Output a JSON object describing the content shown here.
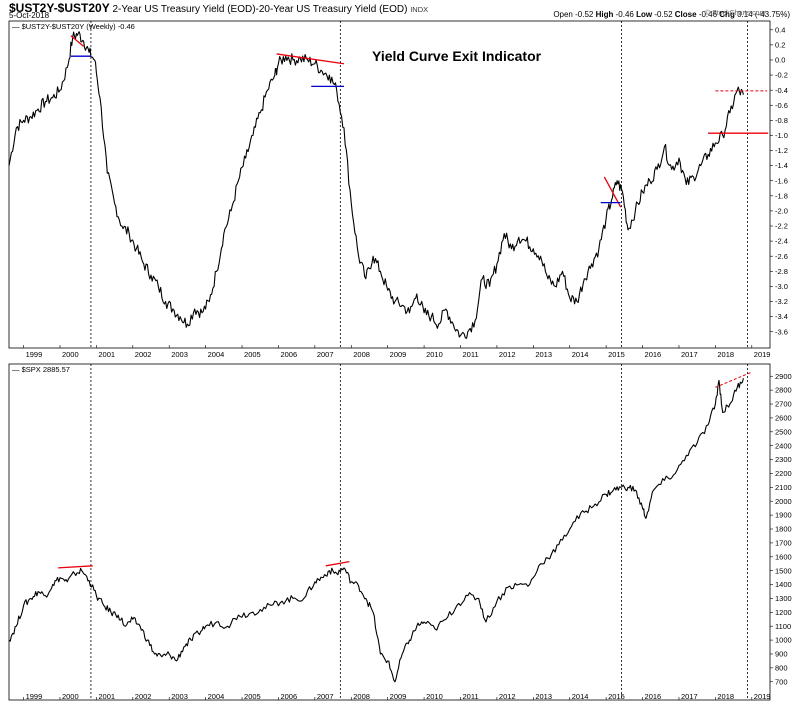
{
  "header": {
    "symbol": "$UST2Y-$UST20Y",
    "description": "2-Year US Treasury Yield (EOD)-20-Year US Treasury Yield (EOD)",
    "exchange": "INDX",
    "date": "5-Oct-2018",
    "open_label": "Open",
    "open": "-0.52",
    "high_label": "High",
    "high": "-0.46",
    "low_label": "Low",
    "low": "-0.52",
    "close_label": "Close",
    "close": "-0.46",
    "chg_label": "Chg",
    "chg": "0.14 (-43.75%)",
    "credit": "© StockCharts.com"
  },
  "colors": {
    "line": "#000000",
    "red": "#e8000b",
    "blue": "#0000cc",
    "grid": "#000000"
  },
  "chart_data": [
    {
      "type": "line",
      "panel": "top",
      "title": "Yield Curve Exit Indicator",
      "legend": "$UST2Y-$UST20Y (Weekly) -0.46",
      "x_tick_labels": [
        "1999",
        "2000",
        "2001",
        "2002",
        "2003",
        "2004",
        "2005",
        "2006",
        "2007",
        "2008",
        "2009",
        "2010",
        "2011",
        "2012",
        "2013",
        "2014",
        "2015",
        "2016",
        "2017",
        "2018",
        "2019"
      ],
      "y_tick_labels": [
        "0.4",
        "0.2",
        "0.0",
        "-0.2",
        "-0.4",
        "-0.6",
        "-0.8",
        "-1.0",
        "-1.2",
        "-1.4",
        "-1.6",
        "-1.8",
        "-2.0",
        "-2.2",
        "-2.4",
        "-2.6",
        "-2.8",
        "-3.0",
        "-3.2",
        "-3.4",
        "-3.6"
      ],
      "ylim": [
        -3.75,
        0.45
      ],
      "xlim": [
        1998.6,
        2019.5
      ],
      "x": [
        1998.6,
        1998.8,
        1999.0,
        1999.2,
        1999.4,
        1999.6,
        1999.8,
        2000.0,
        2000.2,
        2000.35,
        2000.5,
        2000.65,
        2000.8,
        2000.95,
        2001.1,
        2001.3,
        2001.5,
        2001.7,
        2001.9,
        2002.1,
        2002.3,
        2002.5,
        2002.7,
        2002.9,
        2003.1,
        2003.3,
        2003.5,
        2003.7,
        2003.9,
        2004.1,
        2004.3,
        2004.5,
        2004.7,
        2004.9,
        2005.1,
        2005.3,
        2005.5,
        2005.7,
        2005.9,
        2006.0,
        2006.2,
        2006.4,
        2006.6,
        2006.8,
        2007.0,
        2007.2,
        2007.4,
        2007.6,
        2007.8,
        2008.0,
        2008.2,
        2008.4,
        2008.6,
        2008.8,
        2009.0,
        2009.2,
        2009.4,
        2009.6,
        2009.8,
        2010.0,
        2010.2,
        2010.4,
        2010.6,
        2010.8,
        2011.0,
        2011.2,
        2011.4,
        2011.6,
        2011.8,
        2012.0,
        2012.2,
        2012.4,
        2012.6,
        2012.8,
        2013.0,
        2013.2,
        2013.4,
        2013.6,
        2013.8,
        2014.0,
        2014.2,
        2014.4,
        2014.6,
        2014.8,
        2015.0,
        2015.15,
        2015.3,
        2015.45,
        2015.6,
        2015.8,
        2016.0,
        2016.2,
        2016.4,
        2016.6,
        2016.8,
        2017.0,
        2017.2,
        2017.4,
        2017.6,
        2017.8,
        2018.0,
        2018.2,
        2018.4,
        2018.6,
        2018.77
      ],
      "values": [
        -1.4,
        -0.9,
        -0.8,
        -0.75,
        -0.65,
        -0.55,
        -0.5,
        -0.4,
        -0.1,
        0.3,
        0.35,
        0.25,
        0.1,
        0.0,
        -0.5,
        -1.5,
        -1.9,
        -2.2,
        -2.3,
        -2.5,
        -2.7,
        -2.85,
        -3.0,
        -3.2,
        -3.3,
        -3.4,
        -3.5,
        -3.3,
        -3.35,
        -3.2,
        -2.8,
        -2.3,
        -2.0,
        -1.6,
        -1.3,
        -1.0,
        -0.7,
        -0.4,
        -0.2,
        -0.05,
        0.05,
        0.0,
        0.02,
        0.0,
        -0.05,
        -0.15,
        -0.2,
        -0.4,
        -0.9,
        -1.9,
        -2.6,
        -2.9,
        -2.6,
        -2.8,
        -3.05,
        -3.2,
        -3.25,
        -3.35,
        -3.1,
        -3.35,
        -3.4,
        -3.5,
        -3.3,
        -3.5,
        -3.65,
        -3.6,
        -3.45,
        -2.9,
        -3.0,
        -2.7,
        -2.3,
        -2.5,
        -2.35,
        -2.4,
        -2.5,
        -2.6,
        -2.9,
        -3.0,
        -2.8,
        -3.15,
        -3.2,
        -2.9,
        -2.7,
        -2.5,
        -2.1,
        -1.85,
        -1.6,
        -1.75,
        -2.25,
        -2.0,
        -1.75,
        -1.6,
        -1.45,
        -1.15,
        -1.45,
        -1.3,
        -1.65,
        -1.55,
        -1.4,
        -1.25,
        -1.1,
        -1.0,
        -0.7,
        -0.4,
        -0.46
      ]
    },
    {
      "type": "line",
      "panel": "bottom",
      "legend": "$SPX 2885.57",
      "x_tick_labels": [
        "1999",
        "2000",
        "2001",
        "2002",
        "2003",
        "2004",
        "2005",
        "2006",
        "2007",
        "2008",
        "2009",
        "2010",
        "2011",
        "2012",
        "2013",
        "2014",
        "2015",
        "2016",
        "2017",
        "2018",
        "2019"
      ],
      "y_tick_labels": [
        "2900",
        "2800",
        "2700",
        "2600",
        "2500",
        "2400",
        "2300",
        "2200",
        "2100",
        "2000",
        "1900",
        "1800",
        "1700",
        "1600",
        "1500",
        "1400",
        "1300",
        "1200",
        "1100",
        "1000",
        "900",
        "800",
        "700"
      ],
      "ylim": [
        655,
        2945
      ],
      "xlim": [
        1998.6,
        2019.5
      ],
      "x": [
        1998.6,
        1998.8,
        1999.0,
        1999.2,
        1999.4,
        1999.6,
        1999.8,
        2000.0,
        2000.2,
        2000.4,
        2000.6,
        2000.8,
        2001.0,
        2001.2,
        2001.4,
        2001.6,
        2001.8,
        2002.0,
        2002.2,
        2002.4,
        2002.6,
        2002.8,
        2003.0,
        2003.2,
        2003.4,
        2003.6,
        2003.8,
        2004.0,
        2004.3,
        2004.6,
        2004.9,
        2005.2,
        2005.5,
        2005.8,
        2006.1,
        2006.4,
        2006.7,
        2007.0,
        2007.2,
        2007.4,
        2007.6,
        2007.8,
        2008.0,
        2008.2,
        2008.4,
        2008.6,
        2008.8,
        2009.0,
        2009.2,
        2009.4,
        2009.6,
        2009.8,
        2010.0,
        2010.3,
        2010.6,
        2010.9,
        2011.2,
        2011.5,
        2011.7,
        2012.0,
        2012.3,
        2012.6,
        2012.9,
        2013.2,
        2013.5,
        2013.8,
        2014.1,
        2014.4,
        2014.7,
        2015.0,
        2015.2,
        2015.4,
        2015.6,
        2015.8,
        2016.0,
        2016.1,
        2016.3,
        2016.6,
        2016.9,
        2017.2,
        2017.5,
        2017.8,
        2018.0,
        2018.1,
        2018.2,
        2018.4,
        2018.6,
        2018.77
      ],
      "values": [
        1000,
        1100,
        1250,
        1300,
        1350,
        1320,
        1400,
        1450,
        1420,
        1480,
        1500,
        1430,
        1320,
        1250,
        1200,
        1180,
        1100,
        1150,
        1100,
        1000,
        900,
        880,
        900,
        850,
        950,
        1000,
        1050,
        1100,
        1130,
        1100,
        1180,
        1190,
        1220,
        1250,
        1280,
        1300,
        1300,
        1420,
        1450,
        1500,
        1480,
        1520,
        1420,
        1390,
        1300,
        1200,
        900,
        850,
        700,
        900,
        1000,
        1100,
        1130,
        1080,
        1150,
        1250,
        1320,
        1300,
        1130,
        1280,
        1380,
        1400,
        1400,
        1550,
        1620,
        1720,
        1850,
        1920,
        1980,
        2050,
        2080,
        2100,
        2100,
        2080,
        1950,
        1880,
        2080,
        2150,
        2200,
        2330,
        2420,
        2550,
        2700,
        2870,
        2640,
        2700,
        2820,
        2886
      ]
    }
  ],
  "annotations": {
    "top_red_lines": "peak trendlines 2000, 2006-2007, 2015, 2018",
    "top_blue_lines": "support levels 2000, 2007, 2015"
  }
}
